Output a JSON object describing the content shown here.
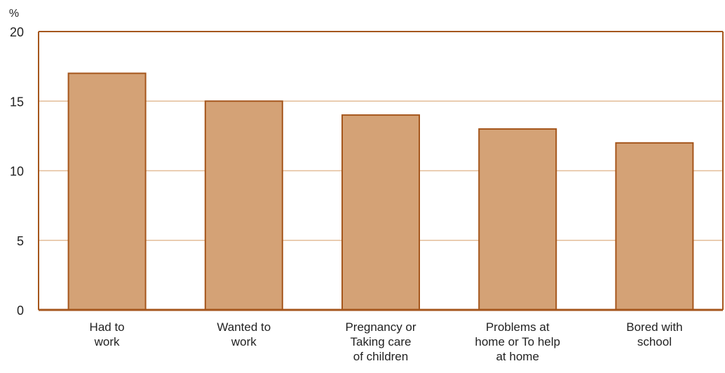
{
  "chart_data": {
    "type": "bar",
    "ylabel": "%",
    "ylim": [
      0,
      20
    ],
    "yticks": [
      0,
      5,
      10,
      15,
      20
    ],
    "grid": true,
    "categories": [
      [
        "Had to",
        "work"
      ],
      [
        "Wanted to",
        "work"
      ],
      [
        "Pregnancy or",
        "Taking care",
        "of children"
      ],
      [
        "Problems at",
        "home or To help",
        "at home"
      ],
      [
        "Bored with",
        "school"
      ]
    ],
    "values": [
      17,
      15,
      14,
      13,
      12
    ]
  },
  "colors": {
    "bar_fill": "#d4a276",
    "bar_stroke": "#a5561c",
    "axis": "#a5561c",
    "grid": "#e3bd98"
  }
}
